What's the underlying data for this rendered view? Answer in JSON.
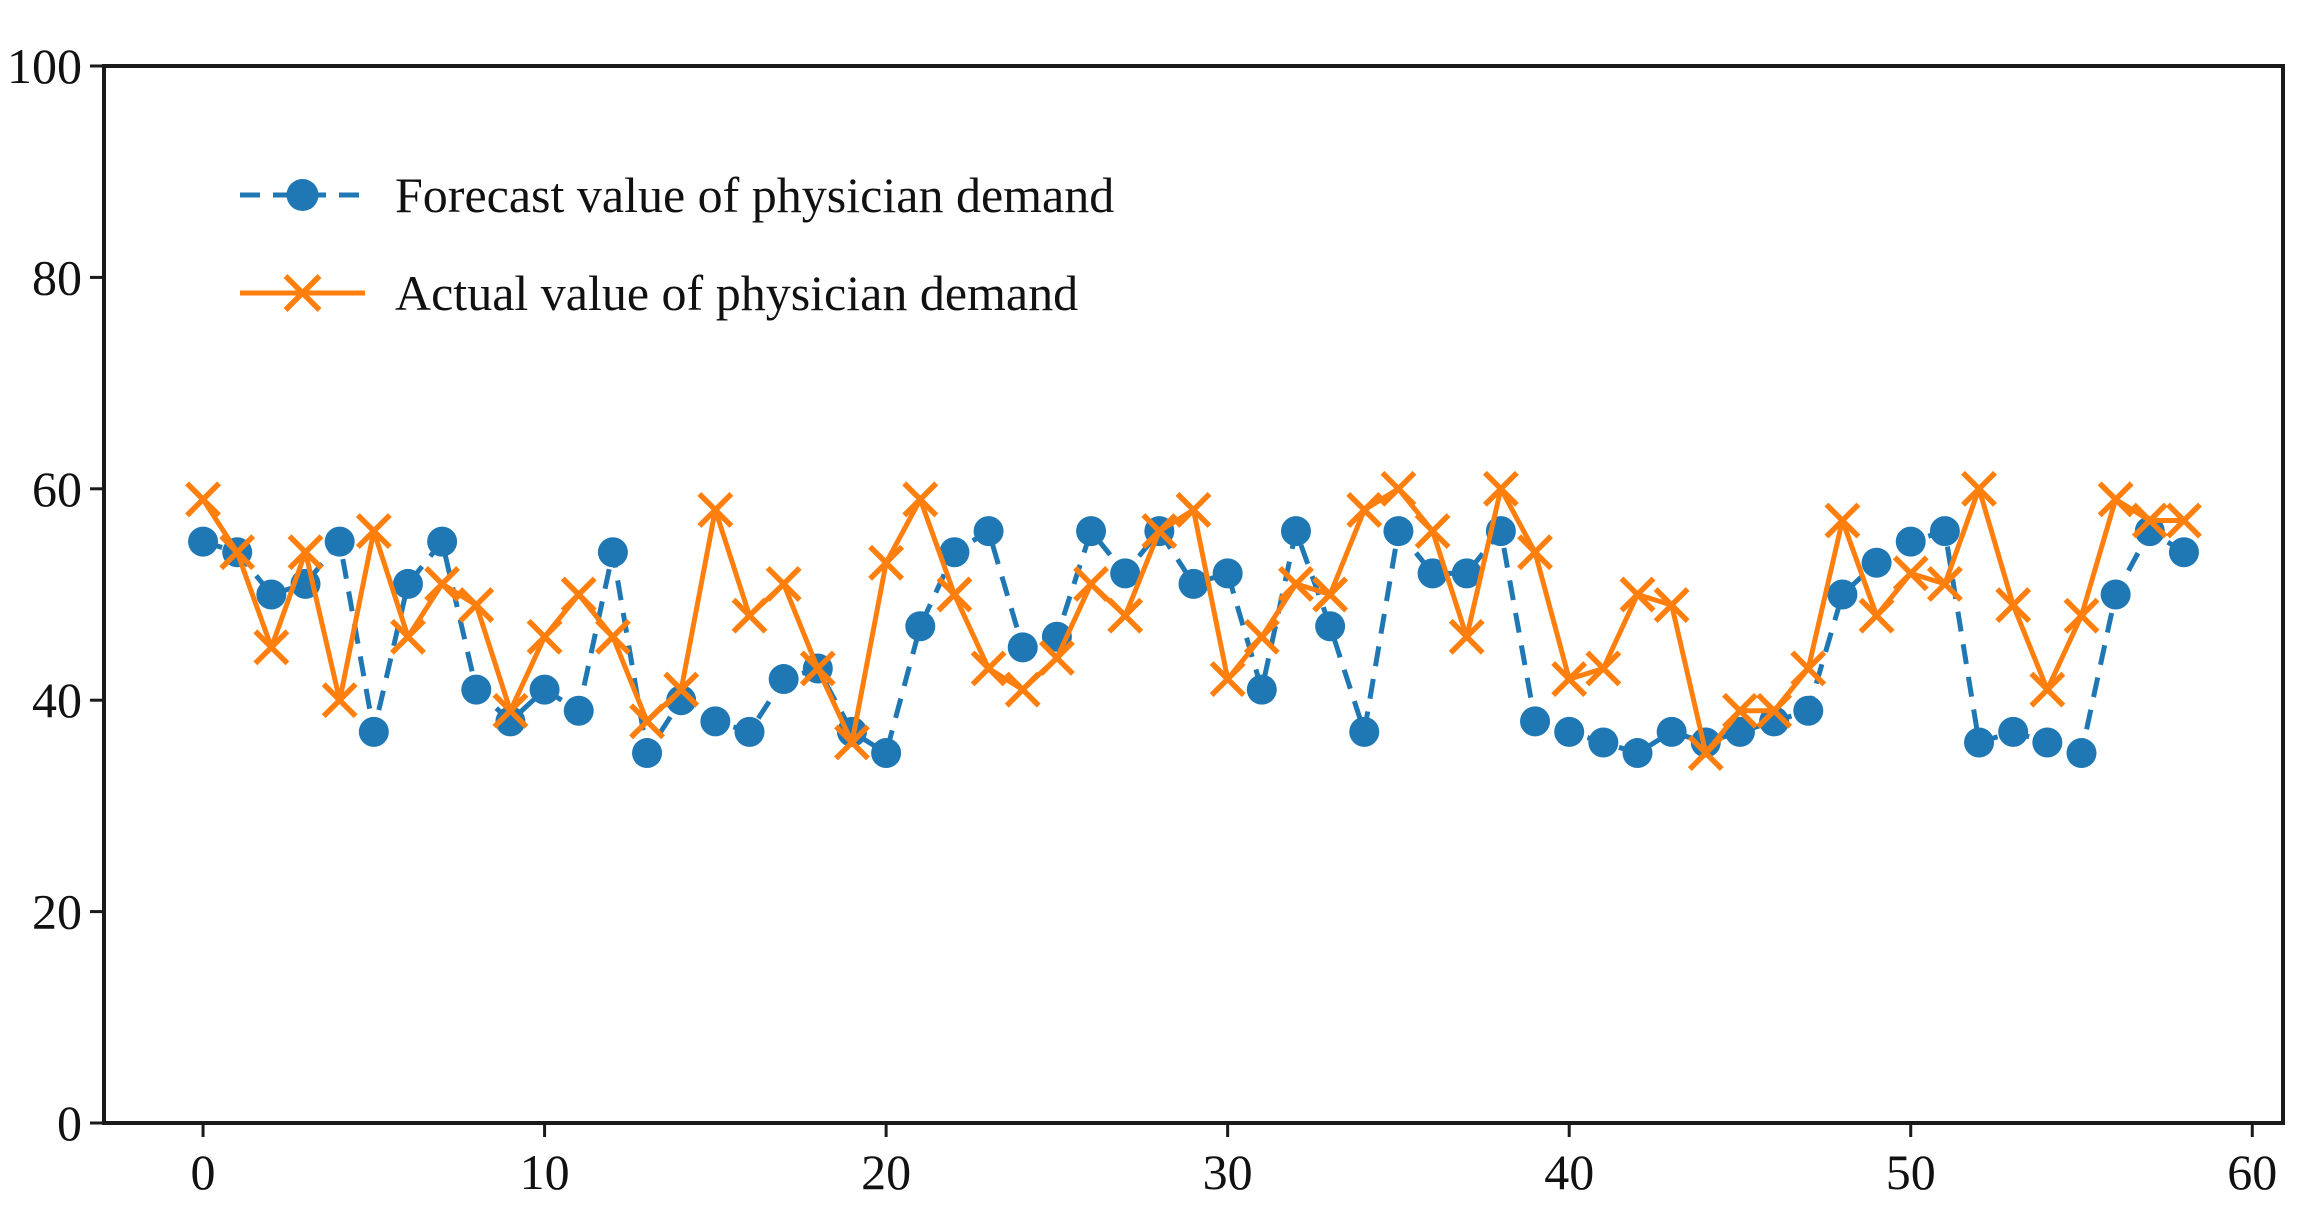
{
  "figure": {
    "background": "#ffffff",
    "text_color": "#111111",
    "axis_color": "#1a1a1a"
  },
  "chart_data": {
    "type": "line",
    "title": "",
    "xlabel": "",
    "ylabel": "",
    "grid": false,
    "legend_position": "upper-left",
    "xlim": [
      -2.9,
      60.9
    ],
    "ylim": [
      0,
      100
    ],
    "x_ticks": [
      0,
      10,
      20,
      30,
      40,
      50,
      60
    ],
    "y_ticks": [
      0,
      20,
      40,
      60,
      80,
      100
    ],
    "x": [
      0,
      1,
      2,
      3,
      4,
      5,
      6,
      7,
      8,
      9,
      10,
      11,
      12,
      13,
      14,
      15,
      16,
      17,
      18,
      19,
      20,
      21,
      22,
      23,
      24,
      25,
      26,
      27,
      28,
      29,
      30,
      31,
      32,
      33,
      34,
      35,
      36,
      37,
      38,
      39,
      40,
      41,
      42,
      43,
      44,
      45,
      46,
      47,
      48,
      49,
      50,
      51,
      52,
      53,
      54,
      55,
      56,
      57,
      58
    ],
    "series": [
      {
        "name": "Forecast value of physician demand",
        "color": "#1f77b4",
        "line_style": "dashed",
        "marker": "circle",
        "values": [
          55,
          54,
          50,
          51,
          55,
          37,
          51,
          55,
          41,
          38,
          41,
          39,
          54,
          35,
          40,
          38,
          37,
          42,
          43,
          37,
          35,
          47,
          54,
          56,
          45,
          46,
          56,
          52,
          56,
          51,
          52,
          41,
          56,
          47,
          37,
          56,
          52,
          52,
          56,
          38,
          37,
          36,
          35,
          37,
          36,
          37,
          38,
          39,
          50,
          53,
          55,
          56,
          36,
          37,
          36,
          35,
          50,
          56,
          54
        ]
      },
      {
        "name": "Actual value of physician demand",
        "color": "#ff7f0e",
        "line_style": "solid",
        "marker": "x",
        "values": [
          59,
          54,
          45,
          54,
          40,
          56,
          46,
          51,
          49,
          39,
          46,
          50,
          46,
          38,
          41,
          58,
          48,
          51,
          43,
          36,
          53,
          59,
          50,
          43,
          41,
          44,
          51,
          48,
          56,
          58,
          42,
          46,
          51,
          50,
          58,
          60,
          56,
          46,
          60,
          54,
          42,
          43,
          50,
          49,
          35,
          39,
          39,
          43,
          57,
          48,
          52,
          51,
          60,
          49,
          41,
          48,
          59,
          57,
          57
        ]
      }
    ]
  }
}
